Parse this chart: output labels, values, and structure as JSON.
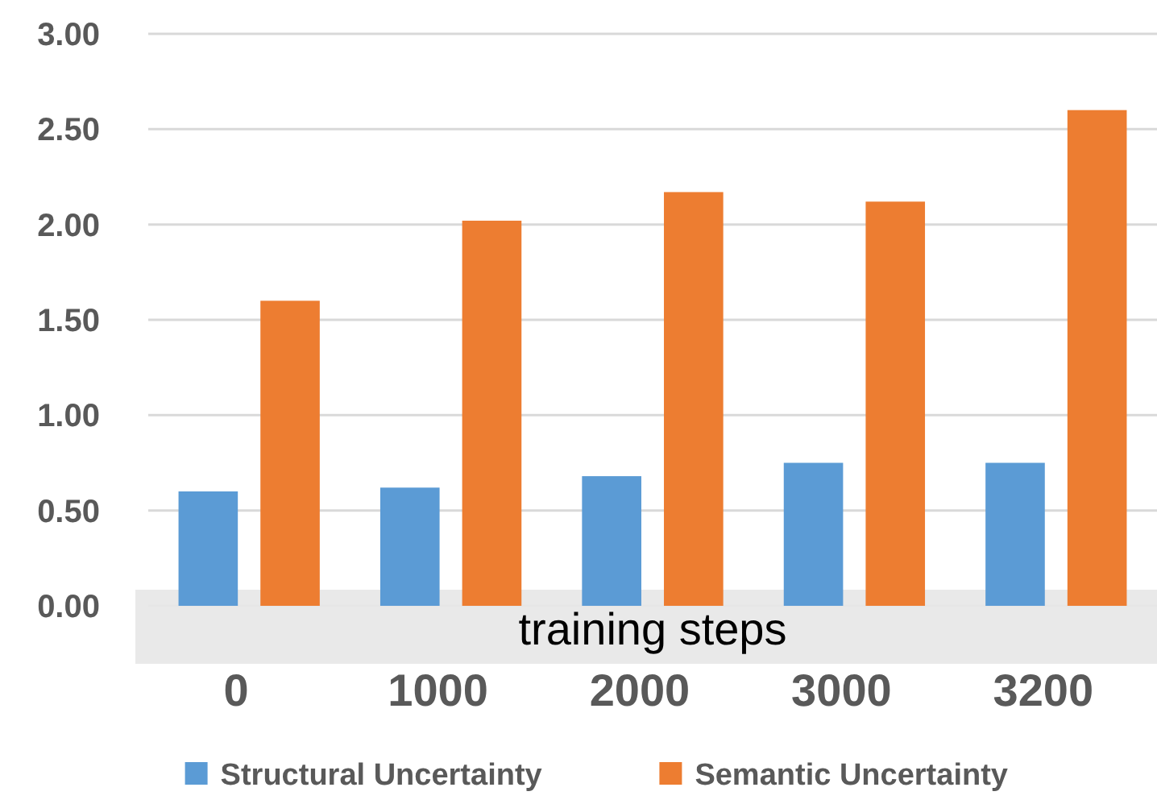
{
  "chart_data": {
    "type": "bar",
    "xlabel": "training steps",
    "categories": [
      "0",
      "1000",
      "2000",
      "3000",
      "3200"
    ],
    "series": [
      {
        "name": "Structural Uncertainty",
        "color": "#5b9bd5",
        "values": [
          0.6,
          0.62,
          0.68,
          0.75,
          0.75
        ]
      },
      {
        "name": "Semantic Uncertainty",
        "color": "#ed7d31",
        "values": [
          1.6,
          2.02,
          2.17,
          2.12,
          2.6
        ]
      }
    ],
    "ylim": [
      0,
      3
    ],
    "yticks": [
      {
        "value": 0,
        "label": "0.00"
      },
      {
        "value": 0.5,
        "label": "0.50"
      },
      {
        "value": 1,
        "label": "1.00"
      },
      {
        "value": 1.5,
        "label": "1.50"
      },
      {
        "value": 2,
        "label": "2.00"
      },
      {
        "value": 2.5,
        "label": "2.50"
      },
      {
        "value": 3,
        "label": "3.00"
      }
    ],
    "grid": "y",
    "legend": "bottom"
  }
}
